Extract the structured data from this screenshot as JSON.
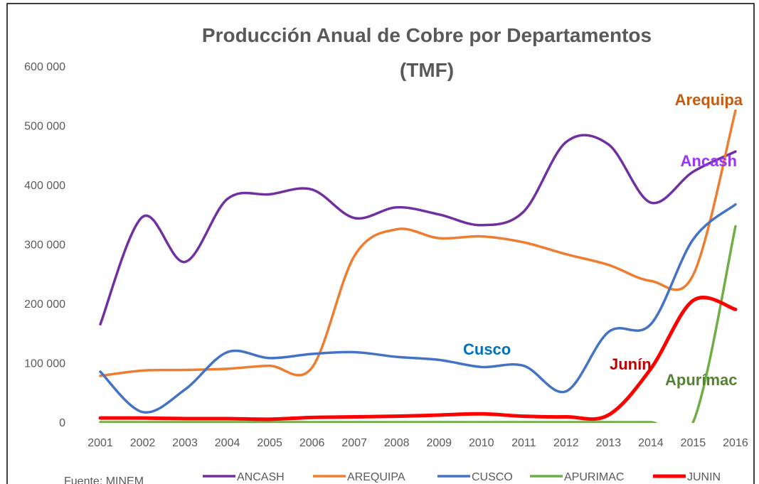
{
  "chart_data": {
    "type": "line",
    "title": "Producción Anual de Cobre por Departamentos",
    "subtitle": "(TMF)",
    "source": "Fuente: MINEM",
    "categories": [
      "2001",
      "2002",
      "2003",
      "2004",
      "2005",
      "2006",
      "2007",
      "2008",
      "2009",
      "2010",
      "2011",
      "2012",
      "2013",
      "2014",
      "2015",
      "2016"
    ],
    "series": [
      {
        "name": "ANCASH",
        "color": "#7030A0",
        "values": [
          165000,
          346000,
          270000,
          376000,
          384000,
          392000,
          344000,
          362000,
          350000,
          332000,
          355000,
          472000,
          468000,
          370000,
          422000,
          456000
        ]
      },
      {
        "name": "AREQUIPA",
        "color": "#ED7D31",
        "values": [
          78000,
          87000,
          88000,
          90000,
          95000,
          92000,
          280000,
          325000,
          310000,
          313000,
          303000,
          283000,
          265000,
          238000,
          248000,
          525000
        ]
      },
      {
        "name": "CUSCO",
        "color": "#4472C4",
        "values": [
          85000,
          17000,
          55000,
          118000,
          108000,
          115000,
          118000,
          110000,
          105000,
          93000,
          95000,
          52000,
          152000,
          165000,
          308000,
          367000
        ]
      },
      {
        "name": "APURIMAC",
        "color": "#70AD47",
        "values": [
          0,
          0,
          0,
          0,
          0,
          0,
          0,
          0,
          0,
          0,
          0,
          0,
          0,
          0,
          0,
          330000
        ]
      },
      {
        "name": "JUNIN",
        "color": "#FF0000",
        "values": [
          7000,
          7000,
          6000,
          6000,
          5000,
          8000,
          9000,
          10000,
          12000,
          14000,
          10000,
          9000,
          12000,
          90000,
          205000,
          190000
        ]
      }
    ],
    "annotations": [
      {
        "text": "Arequipa",
        "color": "#C55A11"
      },
      {
        "text": "Ancash",
        "color": "#9933FF"
      },
      {
        "text": "Cusco",
        "color": "#0070C0"
      },
      {
        "text": "Junín",
        "color": "#C00000"
      },
      {
        "text": "Apurímac",
        "color": "#548235"
      }
    ],
    "ylim": [
      0,
      600000
    ],
    "yticks": [
      0,
      {
        "value": 100000,
        "label": "100 000"
      },
      {
        "value": 200000,
        "label": "200 000"
      },
      {
        "value": 300000,
        "label": "300 000"
      },
      {
        "value": 400000,
        "label": "400 000"
      },
      {
        "value": 500000,
        "label": "500 000"
      },
      {
        "value": 600000,
        "label": "600 000"
      }
    ],
    "grid": false
  }
}
